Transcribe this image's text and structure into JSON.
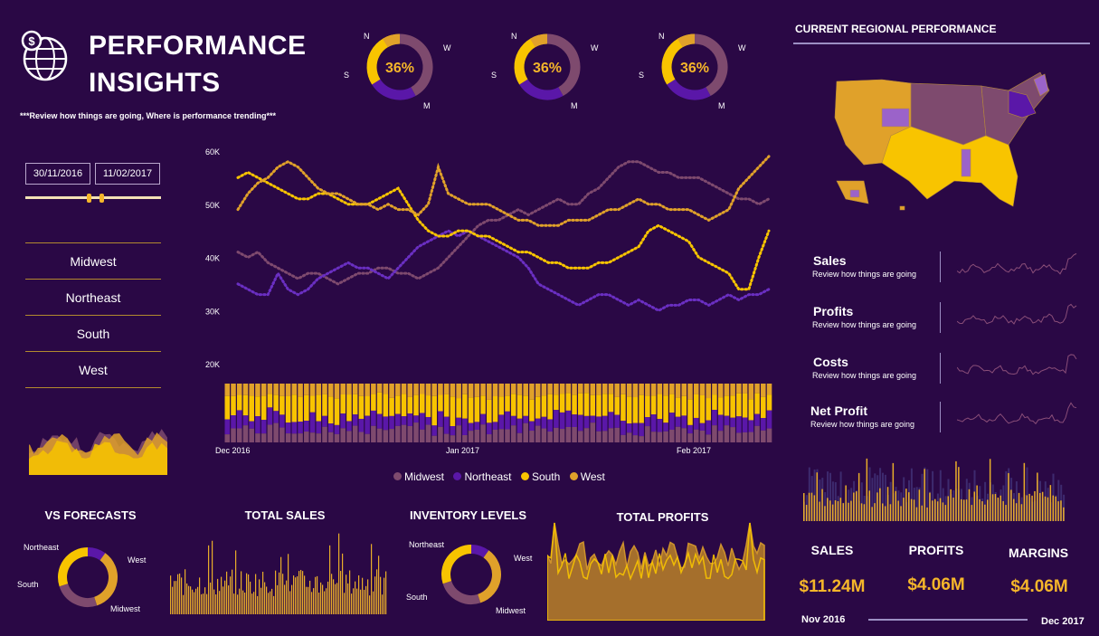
{
  "header": {
    "title_line1": "PERFORMANCE",
    "title_line2": "INSIGHTS",
    "subtitle": "***Review how things are going, Where is performance trending***"
  },
  "colors": {
    "background": "#2a0845",
    "midwest": "#7e4a6e",
    "northeast": "#5a17a8",
    "south": "#f8c400",
    "west": "#e0a12a"
  },
  "top_donuts": [
    {
      "value": "36%",
      "fraction": 0.36,
      "labels": {
        "n": "N",
        "w": "W",
        "s": "S",
        "m": "M"
      }
    },
    {
      "value": "36%",
      "fraction": 0.36,
      "labels": {
        "n": "N",
        "w": "W",
        "s": "S",
        "m": "M"
      }
    },
    {
      "value": "36%",
      "fraction": 0.36,
      "labels": {
        "n": "N",
        "w": "W",
        "s": "S",
        "m": "M"
      }
    }
  ],
  "date_filter": {
    "start": "30/11/2016",
    "end": "11/02/2017"
  },
  "regions": [
    "Midwest",
    "Northeast",
    "South",
    "West"
  ],
  "chart_data": [
    {
      "type": "line",
      "y_ticks": [
        "60K",
        "50K",
        "40K",
        "30K",
        "20K"
      ],
      "ylim": [
        20000,
        60000
      ],
      "x_ticks": [
        "Dec 2016",
        "Jan 2017",
        "Feb 2017"
      ],
      "series": [
        {
          "name": "Midwest",
          "values": [
            41,
            40,
            41,
            39,
            38,
            37,
            36,
            37,
            37,
            36,
            35,
            36,
            37,
            37,
            38,
            38,
            37,
            37,
            36,
            37,
            38,
            40,
            42,
            44,
            46,
            47,
            47,
            48,
            49,
            48,
            49,
            50,
            51,
            50,
            50,
            52,
            53,
            55,
            57,
            58,
            58,
            57,
            56,
            56,
            55,
            55,
            55,
            54,
            53,
            52,
            51,
            51,
            50,
            51
          ]
        },
        {
          "name": "Northeast",
          "values": [
            35,
            34,
            33,
            33,
            37,
            34,
            33,
            34,
            36,
            37,
            38,
            39,
            38,
            38,
            37,
            36,
            38,
            40,
            42,
            43,
            44,
            45,
            44,
            45,
            44,
            43,
            42,
            41,
            40,
            38,
            35,
            34,
            33,
            32,
            31,
            32,
            33,
            33,
            32,
            31,
            32,
            31,
            30,
            31,
            31,
            32,
            32,
            31,
            32,
            33,
            32,
            33,
            33,
            34
          ]
        },
        {
          "name": "South",
          "values": [
            55,
            56,
            55,
            54,
            53,
            52,
            51,
            51,
            52,
            52,
            51,
            50,
            50,
            50,
            51,
            52,
            53,
            50,
            47,
            45,
            44,
            44,
            45,
            45,
            44,
            44,
            43,
            42,
            41,
            41,
            40,
            39,
            39,
            38,
            38,
            38,
            39,
            39,
            40,
            41,
            42,
            45,
            46,
            45,
            44,
            43,
            40,
            39,
            38,
            37,
            34,
            34,
            40,
            45
          ]
        },
        {
          "name": "West",
          "values": [
            49,
            52,
            54,
            55,
            57,
            58,
            57,
            55,
            53,
            52,
            52,
            51,
            50,
            50,
            49,
            50,
            49,
            49,
            48,
            50,
            57,
            52,
            51,
            50,
            50,
            50,
            49,
            48,
            47,
            47,
            46,
            46,
            46,
            47,
            47,
            47,
            48,
            49,
            49,
            50,
            51,
            50,
            50,
            49,
            49,
            49,
            48,
            47,
            48,
            49,
            53,
            55,
            57,
            59
          ]
        }
      ]
    },
    {
      "type": "bar",
      "stacked": true,
      "x_ticks": [
        "Dec 2016",
        "Jan 2017",
        "Feb 2017"
      ],
      "series": [
        {
          "name": "Midwest"
        },
        {
          "name": "Northeast"
        },
        {
          "name": "South"
        },
        {
          "name": "West"
        }
      ]
    },
    {
      "type": "pie",
      "title": "VS FORECASTS",
      "labels": [
        "Northeast",
        "West",
        "Midwest",
        "South"
      ],
      "values": [
        10,
        35,
        25,
        30
      ]
    },
    {
      "type": "bar",
      "title": "TOTAL SALES"
    },
    {
      "type": "pie",
      "title": "INVENTORY LEVELS",
      "labels": [
        "Northeast",
        "West",
        "Midwest",
        "South"
      ],
      "values": [
        10,
        35,
        25,
        30
      ]
    },
    {
      "type": "area",
      "title": "TOTAL PROFITS"
    }
  ],
  "legend": [
    "Midwest",
    "Northeast",
    "South",
    "West"
  ],
  "right_panel": {
    "title": "CURRENT REGIONAL PERFORMANCE",
    "kpis": [
      {
        "name": "Sales",
        "sub": "Review how things are going"
      },
      {
        "name": "Profits",
        "sub": "Review how things are going"
      },
      {
        "name": "Costs",
        "sub": "Review how things are going"
      },
      {
        "name": "Net Profit",
        "sub": "Review how things are going"
      }
    ],
    "totals": [
      {
        "label": "SALES",
        "value": "$11.24M"
      },
      {
        "label": "PROFITS",
        "value": "$4.06M"
      },
      {
        "label": "MARGINS",
        "value": "$4.06M"
      }
    ],
    "range_start": "Nov 2016",
    "range_end": "Dec 2017"
  }
}
